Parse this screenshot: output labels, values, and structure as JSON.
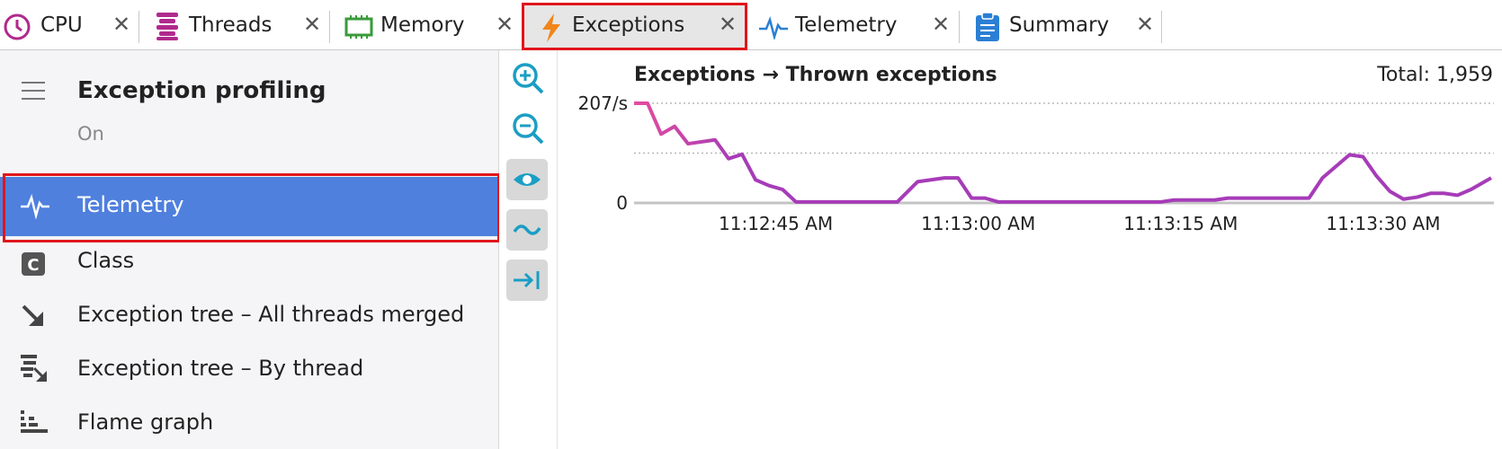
{
  "tabs": [
    "CPU",
    "Threads",
    "Memory",
    "Exceptions",
    "Telemetry",
    "Summary"
  ],
  "sidebar": {
    "title": "Exception profiling",
    "status": "On",
    "items": [
      "Telemetry",
      "Class",
      "Exception tree – All threads merged",
      "Exception tree – By thread",
      "Flame graph"
    ]
  },
  "chart_data": {
    "type": "line",
    "title": "Exceptions → Thrown exceptions",
    "total": "Total: 1,959",
    "x": [
      40354.5,
      40355.5,
      40356.5,
      40357.5,
      40358.5,
      40360.5,
      40361.5,
      40362.5,
      40363.5,
      40364.5,
      40365.5,
      40366.5,
      40374,
      40375.5,
      40377.5,
      40378.5,
      40379.5,
      40380.5,
      40381.5,
      40393.5,
      40394.5,
      40397.5,
      40398.5,
      40404.5,
      40405.5,
      40407.5,
      40408.5,
      40409.5,
      40410.5,
      40411.5,
      40412.5,
      40413.5,
      40414.5,
      40415.5,
      40416.5,
      40418
    ],
    "series": [
      {
        "color": "#a63cb8",
        "gradient_start": "#e44d9e",
        "values": [
          207,
          207,
          143,
          159,
          123,
          131,
          92,
          101,
          48,
          36,
          28,
          2,
          2,
          44,
          52,
          52,
          10,
          10,
          2,
          2,
          6,
          6,
          10,
          10,
          52,
          100,
          96,
          56,
          24,
          8,
          12,
          20,
          20,
          16,
          28,
          52
        ]
      }
    ],
    "xlim": [
      40354.5,
      40418.2
    ],
    "xticks": [
      {
        "value": 40365,
        "label": "11:12:45 AM"
      },
      {
        "value": 40380,
        "label": "11:13:00 AM"
      },
      {
        "value": 40395,
        "label": "11:13:15 AM"
      },
      {
        "value": 40410,
        "label": "11:13:30 AM"
      }
    ],
    "ylim": [
      0,
      207
    ],
    "yticks": [
      {
        "value": 207,
        "label": "207/s"
      },
      0
    ],
    "ygrid": [
      207,
      103.5
    ]
  }
}
